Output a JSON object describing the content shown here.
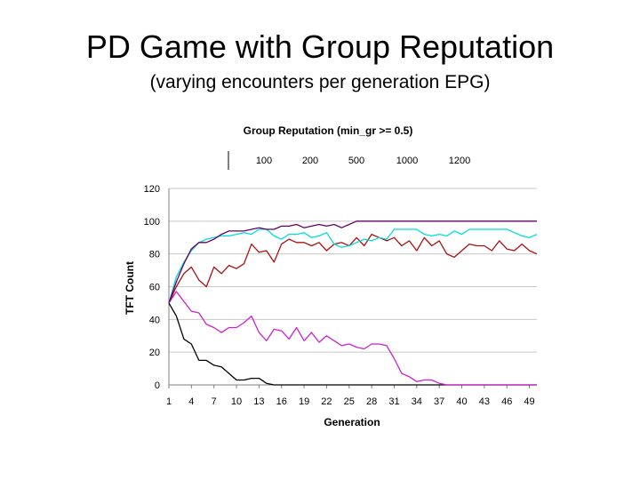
{
  "slide": {
    "title": "PD Game with Group Reputation",
    "subtitle": "(varying encounters per generation EPG)"
  },
  "chart_data": {
    "type": "line",
    "title": "Group Reputation (min_gr >= 0.5)",
    "xlabel": "Generation",
    "ylabel": "TFT Count",
    "ylim": [
      0,
      120
    ],
    "yticks": [
      0,
      20,
      40,
      60,
      80,
      100,
      120
    ],
    "xtick_labels": [
      "1",
      "4",
      "7",
      "10",
      "13",
      "16",
      "19",
      "22",
      "25",
      "28",
      "31",
      "34",
      "37",
      "40",
      "43",
      "46",
      "49"
    ],
    "grid": "horizontal",
    "legend_position": "top",
    "x": [
      1,
      2,
      3,
      4,
      5,
      6,
      7,
      8,
      9,
      10,
      11,
      12,
      13,
      14,
      15,
      16,
      17,
      18,
      19,
      20,
      21,
      22,
      23,
      24,
      25,
      26,
      27,
      28,
      29,
      30,
      31,
      32,
      33,
      34,
      35,
      36,
      37,
      38,
      39,
      40,
      41,
      42,
      43,
      44,
      45,
      46,
      47,
      48,
      49,
      50
    ],
    "series": [
      {
        "name": "100",
        "color": "#000000",
        "values": [
          50,
          42,
          28,
          25,
          15,
          15,
          12,
          11,
          7,
          3,
          3,
          4,
          4,
          1,
          0,
          0,
          0,
          0,
          0,
          0,
          0,
          0,
          0,
          0,
          0,
          0,
          0,
          0,
          0,
          0,
          0,
          0,
          0,
          0,
          0,
          0,
          0,
          0,
          0,
          0,
          0,
          0,
          0,
          0,
          0,
          0,
          0,
          0,
          0,
          0
        ]
      },
      {
        "name": "200",
        "color": "#cc22cc",
        "values": [
          50,
          57,
          51,
          45,
          44,
          37,
          35,
          32,
          35,
          35,
          38,
          42,
          32,
          27,
          34,
          33,
          28,
          35,
          27,
          32,
          26,
          30,
          27,
          24,
          25,
          23,
          22,
          25,
          25,
          24,
          16,
          7,
          5,
          2,
          3,
          3,
          1,
          0,
          0,
          0,
          0,
          0,
          0,
          0,
          0,
          0,
          0,
          0,
          0,
          0
        ]
      },
      {
        "name": "500",
        "color": "#aa1111",
        "values": [
          50,
          60,
          68,
          72,
          64,
          60,
          72,
          68,
          73,
          71,
          74,
          86,
          81,
          82,
          75,
          86,
          89,
          87,
          87,
          85,
          87,
          82,
          86,
          87,
          85,
          90,
          85,
          92,
          90,
          88,
          90,
          85,
          88,
          82,
          90,
          85,
          88,
          80,
          78,
          82,
          86,
          85,
          85,
          82,
          88,
          83,
          82,
          86,
          82,
          80
        ]
      },
      {
        "name": "1000",
        "color": "#00dddd",
        "values": [
          50,
          66,
          75,
          82,
          87,
          89,
          90,
          91,
          91,
          92,
          93,
          92,
          95,
          95,
          91,
          89,
          92,
          92,
          93,
          90,
          91,
          93,
          86,
          84,
          85,
          87,
          89,
          88,
          90,
          89,
          95,
          95,
          95,
          95,
          92,
          91,
          92,
          91,
          94,
          92,
          95,
          95,
          95,
          95,
          95,
          95,
          93,
          91,
          90,
          92
        ]
      },
      {
        "name": "1200",
        "color": "#660066",
        "values": [
          50,
          63,
          74,
          83,
          87,
          87,
          89,
          92,
          94,
          94,
          94,
          95,
          96,
          95,
          95,
          97,
          97,
          98,
          96,
          97,
          98,
          97,
          98,
          96,
          98,
          100,
          100,
          100,
          100,
          100,
          100,
          100,
          100,
          100,
          100,
          100,
          100,
          100,
          100,
          100,
          100,
          100,
          100,
          100,
          100,
          100,
          100,
          100,
          100,
          100
        ]
      }
    ]
  }
}
